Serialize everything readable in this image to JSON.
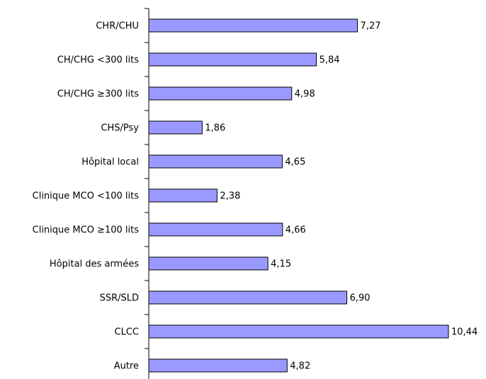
{
  "chart_data": {
    "type": "bar",
    "orientation": "horizontal",
    "categories": [
      "CHR/CHU",
      "CH/CHG <300 lits",
      "CH/CHG ≥300 lits",
      "CHS/Psy",
      "Hôpital local",
      "Clinique MCO <100 lits",
      "Clinique MCO ≥100 lits",
      "Hôpital des armées",
      "SSR/SLD",
      "CLCC",
      "Autre"
    ],
    "values": [
      7.27,
      5.84,
      4.98,
      1.86,
      4.65,
      2.38,
      4.66,
      4.15,
      6.9,
      10.44,
      4.82
    ],
    "value_labels": [
      "7,27",
      "5,84",
      "4,98",
      "1,86",
      "4,65",
      "2,38",
      "4,66",
      "4,15",
      "6,90",
      "10,44",
      "4,82"
    ],
    "color": "#9999ff"
  }
}
